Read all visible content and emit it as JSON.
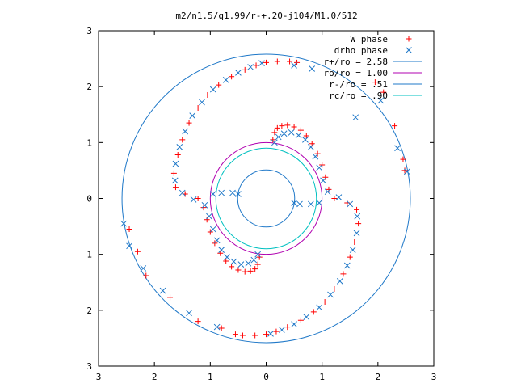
{
  "chart_data": {
    "type": "scatter",
    "title": "m2/n1.5/q1.99/r-+.20-j104/M1.0/512",
    "xlim": [
      -3,
      3
    ],
    "ylim": [
      -3,
      3
    ],
    "x_tick_values": [
      -3,
      -2,
      -1,
      0,
      1,
      2,
      3
    ],
    "x_tick_labels": [
      "3",
      "2",
      "1",
      "0",
      "1",
      "2",
      "3"
    ],
    "y_tick_values": [
      3,
      2,
      1,
      0,
      -1,
      -2,
      -3
    ],
    "y_tick_labels": [
      "3",
      "2",
      "1",
      "0",
      "1",
      "2",
      "3"
    ],
    "grid": false,
    "legend_position": "top-right",
    "colors": {
      "w_phase": "#ff0000",
      "drho_phase": "#1f78c8",
      "r_plus": "#1f78c8",
      "r_o": "#b000b0",
      "r_minus": "#1f78c8",
      "r_c": "#00c0c0"
    },
    "legend": [
      {
        "label": "W phase",
        "kind": "marker",
        "marker": "plus",
        "color": "#ff0000"
      },
      {
        "label": "drho phase",
        "kind": "marker",
        "marker": "cross",
        "color": "#1f78c8"
      },
      {
        "label": "r+/ro = 2.58",
        "kind": "line",
        "color": "#1f78c8"
      },
      {
        "label": "ro/ro = 1.00",
        "kind": "line",
        "color": "#b000b0"
      },
      {
        "label": "r-/ro = .51",
        "kind": "line",
        "color": "#1f78c8"
      },
      {
        "label": "rc/ro = .90",
        "kind": "line",
        "color": "#00c0c0"
      }
    ],
    "circles": [
      {
        "name": "r+/ro",
        "radius": 2.58,
        "color": "#1f78c8"
      },
      {
        "name": "ro/ro",
        "radius": 1.0,
        "color": "#b000b0"
      },
      {
        "name": "r-/ro",
        "radius": 0.51,
        "color": "#1f78c8"
      },
      {
        "name": "rc/ro",
        "radius": 0.9,
        "color": "#00c0c0"
      }
    ],
    "series": [
      {
        "name": "W phase",
        "marker": "plus",
        "color": "#ff0000",
        "points": [
          [
            0.12,
            1.05
          ],
          [
            0.15,
            1.18
          ],
          [
            0.2,
            1.26
          ],
          [
            0.28,
            1.3
          ],
          [
            0.38,
            1.31
          ],
          [
            0.5,
            1.28
          ],
          [
            0.62,
            1.22
          ],
          [
            0.72,
            1.12
          ],
          [
            0.82,
            0.98
          ],
          [
            0.92,
            0.8
          ],
          [
            1.0,
            0.6
          ],
          [
            1.06,
            0.38
          ],
          [
            1.12,
            0.16
          ],
          [
            1.22,
            0.0
          ],
          [
            1.45,
            -0.08
          ],
          [
            1.62,
            -0.2
          ],
          [
            1.65,
            -0.45
          ],
          [
            1.58,
            -0.78
          ],
          [
            1.5,
            -1.05
          ],
          [
            1.38,
            -1.35
          ],
          [
            1.22,
            -1.62
          ],
          [
            1.05,
            -1.85
          ],
          [
            0.85,
            -2.03
          ],
          [
            0.62,
            -2.18
          ],
          [
            0.38,
            -2.3
          ],
          [
            0.18,
            -2.38
          ],
          [
            0.0,
            -2.43
          ],
          [
            -0.2,
            -2.45
          ],
          [
            -0.42,
            -2.45
          ],
          [
            -0.55,
            -2.43
          ],
          [
            -0.12,
            -1.05
          ],
          [
            -0.15,
            -1.18
          ],
          [
            -0.2,
            -1.26
          ],
          [
            -0.28,
            -1.3
          ],
          [
            -0.38,
            -1.31
          ],
          [
            -0.5,
            -1.28
          ],
          [
            -0.62,
            -1.22
          ],
          [
            -0.72,
            -1.12
          ],
          [
            -0.82,
            -0.98
          ],
          [
            -0.92,
            -0.8
          ],
          [
            -1.0,
            -0.6
          ],
          [
            -1.06,
            -0.38
          ],
          [
            -1.12,
            -0.16
          ],
          [
            -1.22,
            0.0
          ],
          [
            -1.45,
            0.08
          ],
          [
            -1.62,
            0.2
          ],
          [
            -1.65,
            0.45
          ],
          [
            -1.58,
            0.78
          ],
          [
            -1.5,
            1.05
          ],
          [
            -1.38,
            1.35
          ],
          [
            -1.22,
            1.62
          ],
          [
            -1.05,
            1.85
          ],
          [
            -0.85,
            2.03
          ],
          [
            -0.62,
            2.18
          ],
          [
            -0.38,
            2.3
          ],
          [
            -0.18,
            2.38
          ],
          [
            0.0,
            2.43
          ],
          [
            0.2,
            2.45
          ],
          [
            0.42,
            2.45
          ],
          [
            0.55,
            2.43
          ],
          [
            1.95,
            2.08
          ],
          [
            2.1,
            1.9
          ],
          [
            2.3,
            1.3
          ],
          [
            2.45,
            0.7
          ],
          [
            2.48,
            0.5
          ],
          [
            -2.45,
            -0.55
          ],
          [
            -2.3,
            -0.95
          ],
          [
            -2.15,
            -1.38
          ],
          [
            -1.72,
            -1.77
          ],
          [
            -1.22,
            -2.2
          ],
          [
            -0.8,
            -2.32
          ]
        ]
      },
      {
        "name": "drho phase",
        "marker": "cross",
        "color": "#1f78c8",
        "points": [
          [
            0.15,
            1.0
          ],
          [
            0.22,
            1.1
          ],
          [
            0.32,
            1.16
          ],
          [
            0.45,
            1.18
          ],
          [
            0.58,
            1.13
          ],
          [
            0.7,
            1.05
          ],
          [
            0.8,
            0.92
          ],
          [
            0.88,
            0.75
          ],
          [
            0.95,
            0.55
          ],
          [
            1.02,
            0.32
          ],
          [
            1.1,
            0.12
          ],
          [
            1.3,
            0.02
          ],
          [
            1.5,
            -0.1
          ],
          [
            1.63,
            -0.32
          ],
          [
            1.62,
            -0.62
          ],
          [
            1.55,
            -0.92
          ],
          [
            1.45,
            -1.2
          ],
          [
            1.32,
            -1.48
          ],
          [
            1.15,
            -1.72
          ],
          [
            0.95,
            -1.95
          ],
          [
            0.72,
            -2.12
          ],
          [
            0.5,
            -2.25
          ],
          [
            0.28,
            -2.35
          ],
          [
            0.08,
            -2.42
          ],
          [
            -0.15,
            -1.0
          ],
          [
            -0.22,
            -1.1
          ],
          [
            -0.32,
            -1.16
          ],
          [
            -0.45,
            -1.18
          ],
          [
            -0.58,
            -1.13
          ],
          [
            -0.7,
            -1.05
          ],
          [
            -0.8,
            -0.92
          ],
          [
            -0.88,
            -0.75
          ],
          [
            -0.95,
            -0.55
          ],
          [
            -1.02,
            -0.32
          ],
          [
            -1.1,
            -0.12
          ],
          [
            -1.3,
            -0.02
          ],
          [
            -1.5,
            0.1
          ],
          [
            -1.63,
            0.32
          ],
          [
            -1.62,
            0.62
          ],
          [
            -1.55,
            0.92
          ],
          [
            -1.45,
            1.2
          ],
          [
            -1.32,
            1.48
          ],
          [
            -1.15,
            1.72
          ],
          [
            -0.95,
            1.95
          ],
          [
            -0.72,
            2.12
          ],
          [
            -0.5,
            2.25
          ],
          [
            -0.28,
            2.35
          ],
          [
            -0.08,
            2.42
          ],
          [
            -0.95,
            0.08
          ],
          [
            -0.8,
            0.1
          ],
          [
            -0.6,
            0.1
          ],
          [
            -0.5,
            0.08
          ],
          [
            0.95,
            -0.08
          ],
          [
            0.8,
            -0.1
          ],
          [
            0.6,
            -0.1
          ],
          [
            0.5,
            -0.08
          ],
          [
            0.5,
            2.38
          ],
          [
            0.82,
            2.32
          ],
          [
            1.6,
            1.45
          ],
          [
            2.05,
            1.75
          ],
          [
            2.35,
            0.9
          ],
          [
            2.52,
            0.48
          ],
          [
            -2.55,
            -0.45
          ],
          [
            -2.45,
            -0.85
          ],
          [
            -2.2,
            -1.25
          ],
          [
            -1.85,
            -1.65
          ],
          [
            -1.38,
            -2.05
          ],
          [
            -0.88,
            -2.3
          ]
        ]
      }
    ]
  }
}
